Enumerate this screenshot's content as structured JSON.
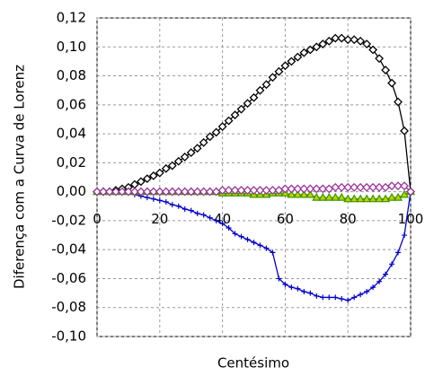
{
  "chart_data": {
    "type": "line",
    "xlabel": "Centésimo",
    "ylabel": "Diferença com a Curva de Lorenz",
    "x": [
      0,
      2,
      4,
      6,
      8,
      10,
      12,
      14,
      16,
      18,
      20,
      22,
      24,
      26,
      28,
      30,
      32,
      34,
      36,
      38,
      40,
      42,
      44,
      46,
      48,
      50,
      52,
      54,
      56,
      58,
      60,
      62,
      64,
      66,
      68,
      70,
      72,
      74,
      76,
      78,
      80,
      82,
      84,
      86,
      88,
      90,
      92,
      94,
      96,
      98,
      100
    ],
    "series": [
      {
        "color": "#000000",
        "marker": "diamond",
        "values": [
          0,
          0,
          0,
          0.001,
          0.002,
          0.003,
          0.005,
          0.007,
          0.009,
          0.011,
          0.013,
          0.016,
          0.018,
          0.021,
          0.024,
          0.027,
          0.03,
          0.034,
          0.038,
          0.041,
          0.045,
          0.049,
          0.053,
          0.057,
          0.061,
          0.065,
          0.07,
          0.074,
          0.079,
          0.083,
          0.087,
          0.09,
          0.093,
          0.096,
          0.098,
          0.1,
          0.102,
          0.104,
          0.106,
          0.106,
          0.105,
          0.105,
          0.104,
          0.102,
          0.098,
          0.092,
          0.084,
          0.075,
          0.062,
          0.042,
          0
        ]
      },
      {
        "color": "#0000cc",
        "marker": "plus",
        "values": [
          0,
          0,
          0,
          0,
          0,
          -0.001,
          -0.002,
          -0.003,
          -0.004,
          -0.005,
          -0.006,
          -0.007,
          -0.009,
          -0.01,
          -0.012,
          -0.013,
          -0.015,
          -0.016,
          -0.018,
          -0.02,
          -0.022,
          -0.025,
          -0.029,
          -0.031,
          -0.033,
          -0.035,
          -0.037,
          -0.039,
          -0.042,
          -0.06,
          -0.064,
          -0.066,
          -0.067,
          -0.069,
          -0.07,
          -0.072,
          -0.073,
          -0.073,
          -0.073,
          -0.074,
          -0.075,
          -0.073,
          -0.071,
          -0.069,
          -0.066,
          -0.062,
          -0.057,
          -0.05,
          -0.042,
          -0.03,
          0
        ]
      },
      {
        "color": "#339900",
        "marker": "triangle",
        "values": [
          0,
          0,
          0,
          0,
          0,
          0,
          0,
          0,
          0,
          0,
          0,
          0,
          0,
          0,
          0,
          0,
          0,
          0,
          0,
          0,
          -0.001,
          -0.001,
          -0.001,
          -0.001,
          -0.001,
          -0.002,
          -0.002,
          -0.002,
          -0.001,
          -0.001,
          -0.001,
          -0.002,
          -0.002,
          -0.002,
          -0.002,
          -0.004,
          -0.004,
          -0.004,
          -0.004,
          -0.004,
          -0.005,
          -0.005,
          -0.005,
          -0.005,
          -0.005,
          -0.005,
          -0.005,
          -0.004,
          -0.004,
          -0.002,
          0
        ]
      },
      {
        "color": "#993399",
        "marker": "diamond",
        "values": [
          0,
          0,
          0,
          0,
          0,
          0,
          0,
          0,
          0,
          0,
          0,
          0,
          0,
          0,
          0,
          0,
          0,
          0,
          0,
          0,
          0.001,
          0.001,
          0.001,
          0.001,
          0.001,
          0.001,
          0.001,
          0.001,
          0.001,
          0.001,
          0.002,
          0.002,
          0.002,
          0.002,
          0.002,
          0.002,
          0.002,
          0.002,
          0.003,
          0.003,
          0.003,
          0.003,
          0.003,
          0.003,
          0.003,
          0.003,
          0.003,
          0.004,
          0.004,
          0.004,
          0
        ]
      }
    ],
    "xlim": [
      0,
      100
    ],
    "xticks": [
      0,
      20,
      40,
      60,
      80,
      100
    ],
    "ylim": [
      -0.1,
      0.12
    ],
    "yticks": [
      {
        "value": -0.1,
        "label": "-0,10"
      },
      {
        "value": -0.08,
        "label": "-0,08"
      },
      {
        "value": -0.06,
        "label": "-0,06"
      },
      {
        "value": -0.04,
        "label": "-0,04"
      },
      {
        "value": -0.02,
        "label": "-0,02"
      },
      {
        "value": 0,
        "label": "0,00"
      },
      {
        "value": 0.02,
        "label": "0,02"
      },
      {
        "value": 0.04,
        "label": "0,04"
      },
      {
        "value": 0.06,
        "label": "0,06"
      },
      {
        "value": 0.08,
        "label": "0,08"
      },
      {
        "value": 0.1,
        "label": "0,10"
      },
      {
        "value": 0.12,
        "label": "0,12"
      }
    ],
    "grid": true
  }
}
